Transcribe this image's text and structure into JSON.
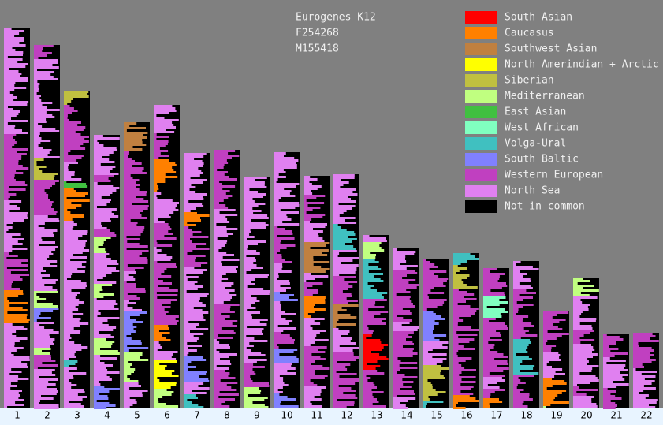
{
  "header": {
    "lines": [
      "Eurogenes K12",
      "F254268",
      "M155418"
    ]
  },
  "legend": [
    {
      "label": "South Asian",
      "color": "#ff0000"
    },
    {
      "label": "Caucasus",
      "color": "#ff8000"
    },
    {
      "label": "Southwest Asian",
      "color": "#c08040"
    },
    {
      "label": "North Amerindian + Arctic",
      "color": "#ffff00"
    },
    {
      "label": "Siberian",
      "color": "#c0c040"
    },
    {
      "label": "Mediterranean",
      "color": "#c0ff80"
    },
    {
      "label": "East Asian",
      "color": "#40c040"
    },
    {
      "label": "West African",
      "color": "#80ffc0"
    },
    {
      "label": "Volga-Ural",
      "color": "#40c0c0"
    },
    {
      "label": "South Baltic",
      "color": "#8080ff"
    },
    {
      "label": "Western European",
      "color": "#c040c0"
    },
    {
      "label": "North Sea",
      "color": "#e080f0"
    },
    {
      "label": "Not in common",
      "color": "#000000"
    }
  ],
  "chromosomes": [
    "1",
    "2",
    "3",
    "4",
    "5",
    "6",
    "7",
    "8",
    "9",
    "10",
    "11",
    "12",
    "13",
    "14",
    "15",
    "16",
    "17",
    "18",
    "19",
    "20",
    "21",
    "22"
  ]
}
